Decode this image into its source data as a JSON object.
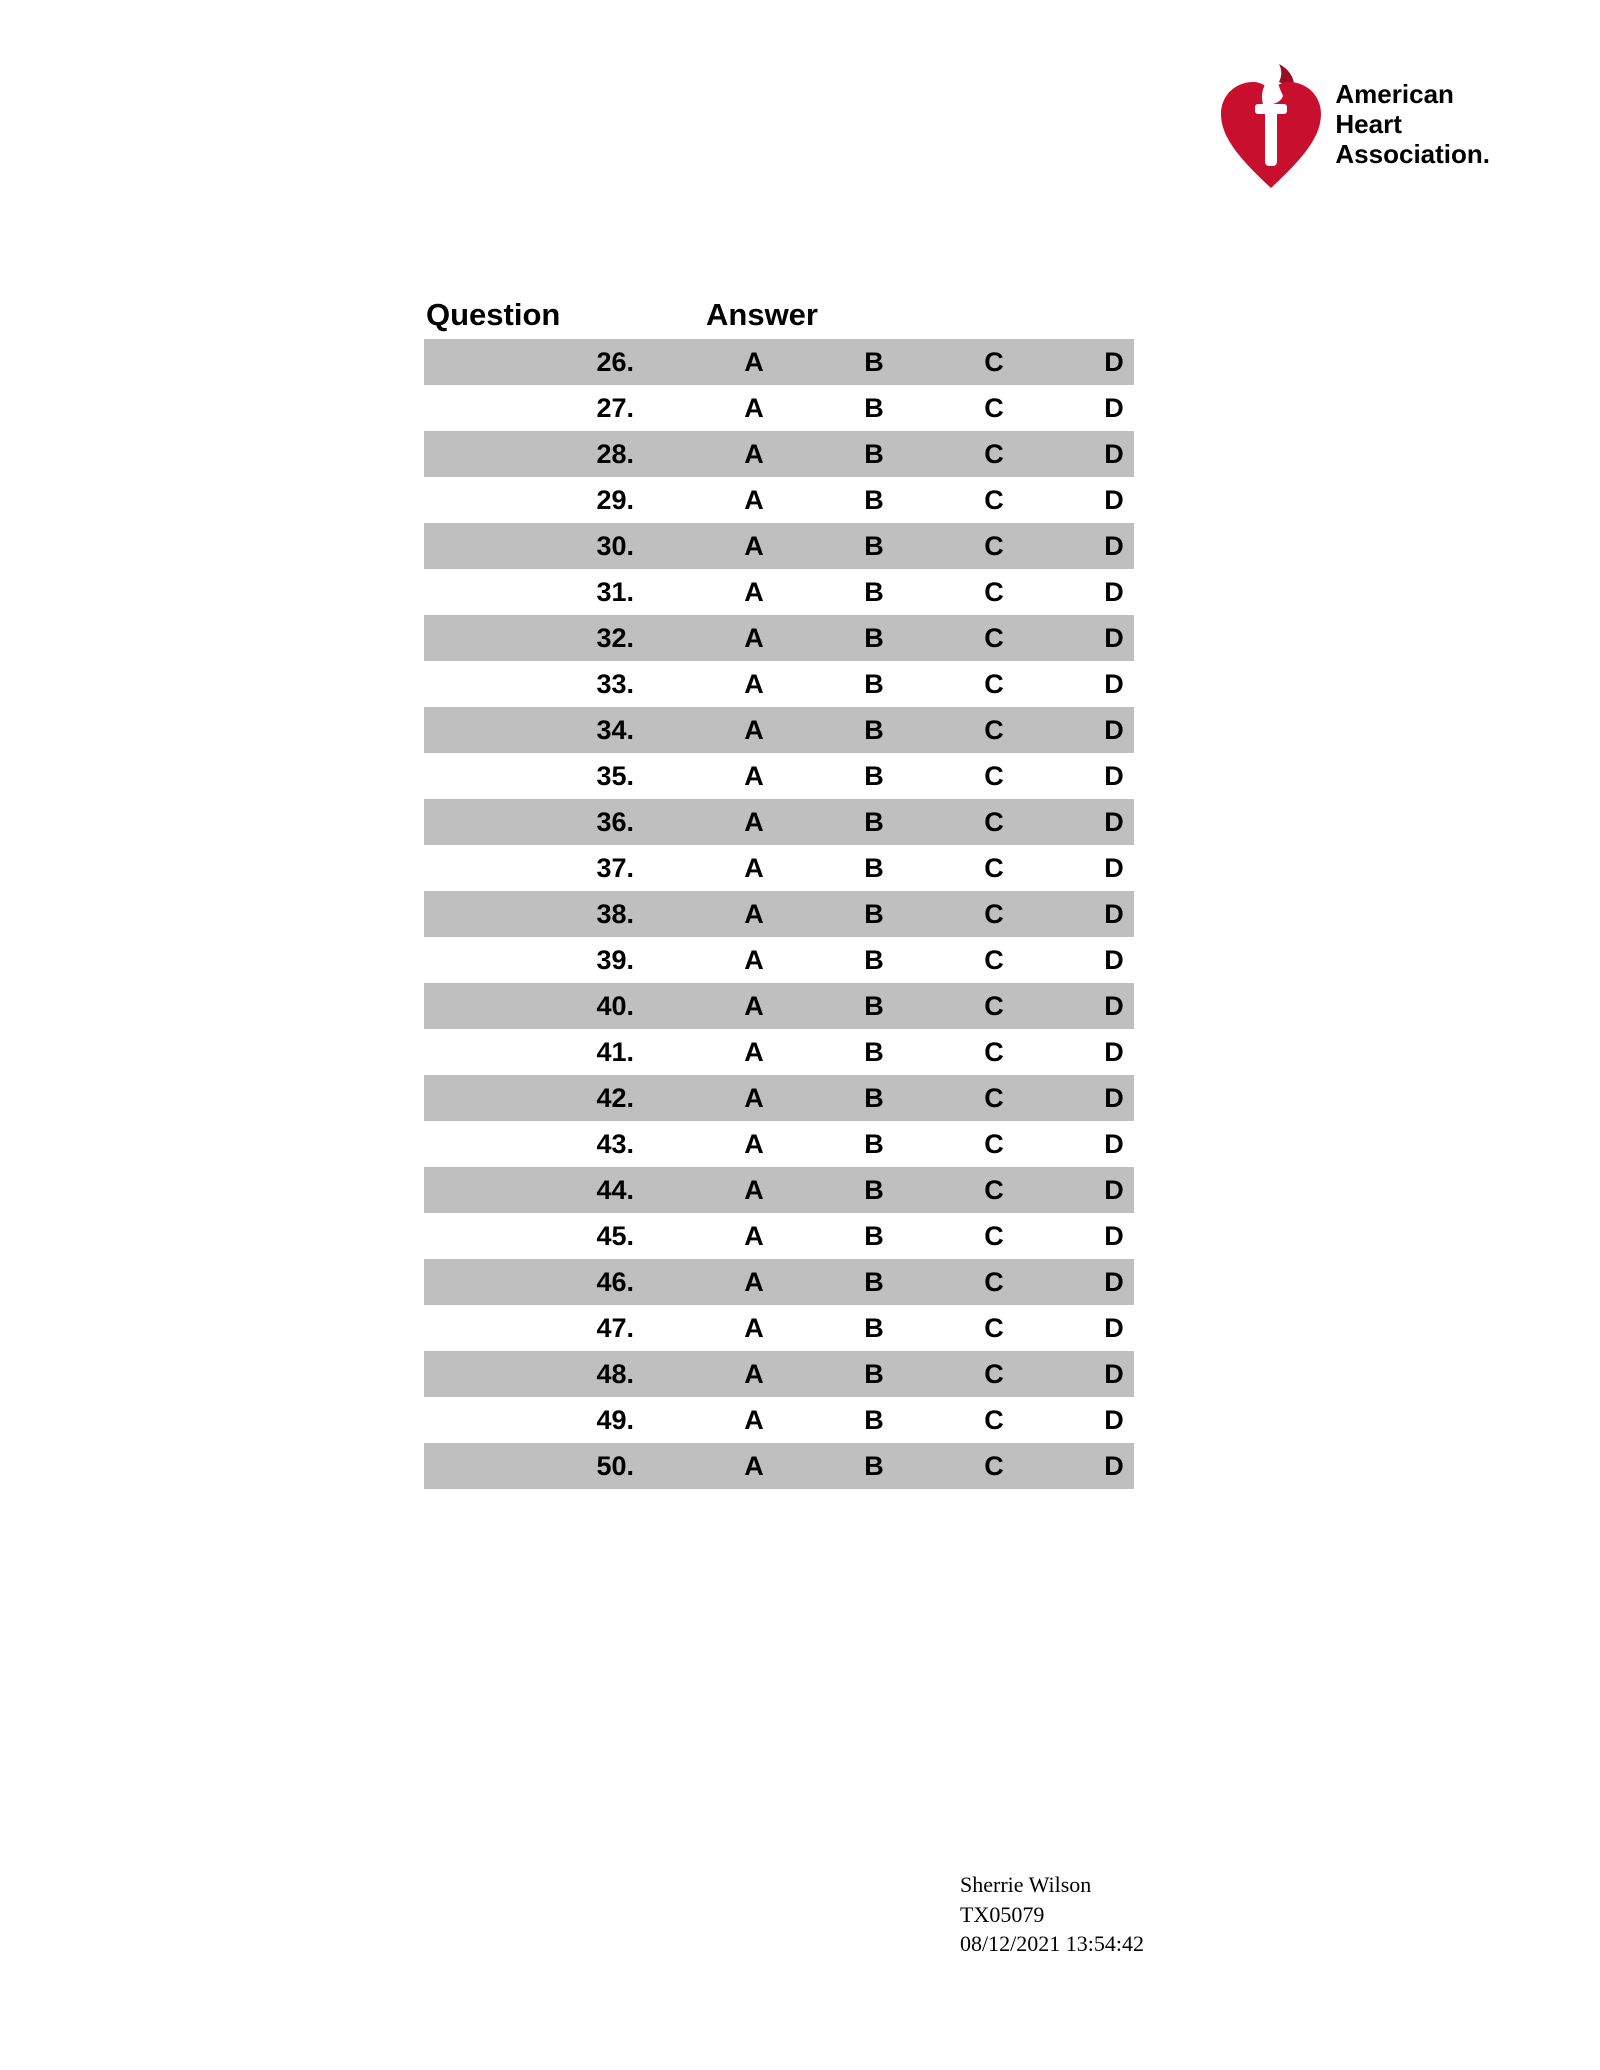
{
  "org": {
    "line1": "American",
    "line2": "Heart",
    "line3": "Association."
  },
  "logo": {
    "heart_color": "#c8102e",
    "torch_color": "#ffffff",
    "flame_shadow": "#9a0c22"
  },
  "table": {
    "header_question": "Question",
    "header_answer": "Answer",
    "shade_color": "#bfbfbf",
    "start": 26,
    "end": 50,
    "options": [
      "A",
      "B",
      "C",
      "D"
    ]
  },
  "footer": {
    "name": "Sherrie Wilson",
    "code": "TX05079",
    "datetime": "08/12/2021 13:54:42"
  }
}
